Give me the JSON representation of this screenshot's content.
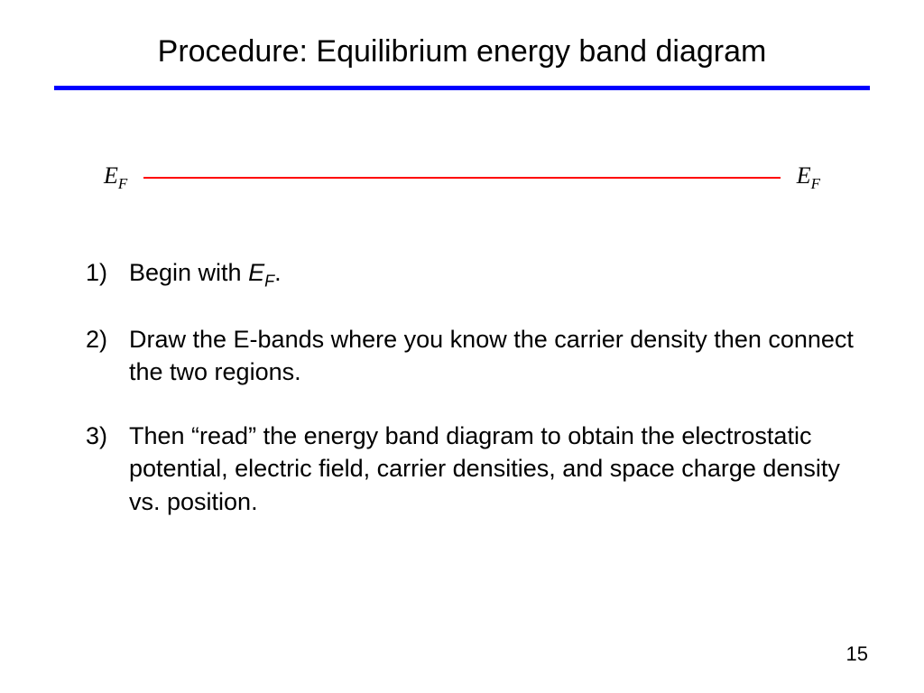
{
  "slide": {
    "title": "Procedure: Equilibrium energy band diagram",
    "divider_color": "#0000ff",
    "background_color": "#ffffff"
  },
  "fermi_diagram": {
    "left_label_base": "E",
    "left_label_sub": "F",
    "right_label_base": "E",
    "right_label_sub": "F",
    "line_color": "#ff0000",
    "label_fontsize": 26
  },
  "steps": {
    "item1": {
      "number": "1)",
      "text_prefix": "Begin with ",
      "variable_base": "E",
      "variable_sub": "F",
      "text_suffix": "."
    },
    "item2": {
      "number": "2)",
      "text": "Draw the E-bands where you know the carrier density then connect the two regions."
    },
    "item3": {
      "number": "3)",
      "text": "Then “read” the energy band diagram to obtain the electrostatic potential, electric field, carrier densities, and space charge density vs. position."
    }
  },
  "page_number": "15",
  "typography": {
    "title_fontsize": 34,
    "body_fontsize": 27,
    "text_color": "#000000"
  }
}
